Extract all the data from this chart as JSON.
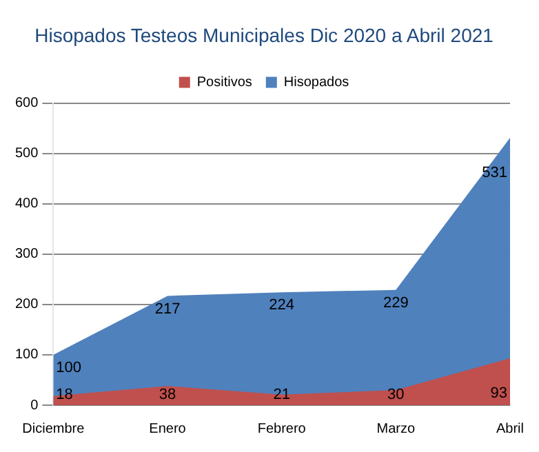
{
  "chart_data": {
    "type": "area",
    "title": "Hisopados Testeos Municipales Dic 2020 a Abril 2021",
    "categories": [
      "Diciembre",
      "Enero",
      "Febrero",
      "Marzo",
      "Abril"
    ],
    "series": [
      {
        "name": "Hisopados",
        "color": "#4f81bd",
        "values": [
          100,
          217,
          224,
          229,
          531
        ]
      },
      {
        "name": "Positivos",
        "color": "#c0504d",
        "values": [
          18,
          38,
          21,
          30,
          93
        ]
      }
    ],
    "ylim": [
      0,
      600
    ],
    "yticks": [
      0,
      100,
      200,
      300,
      400,
      500,
      600
    ],
    "grid": "y",
    "legend": "top",
    "data_labels": true
  }
}
